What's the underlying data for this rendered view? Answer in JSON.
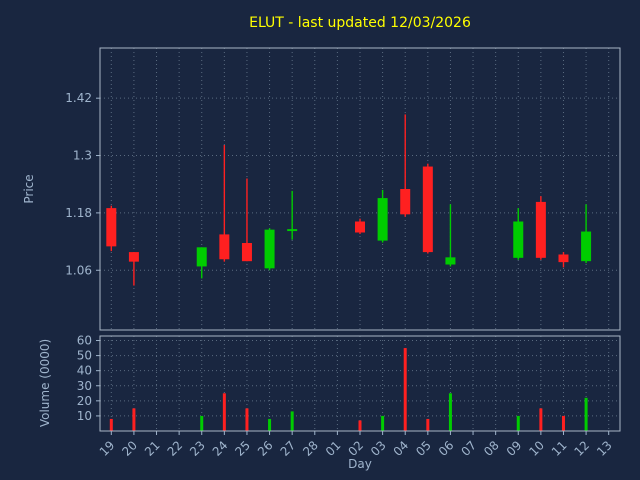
{
  "colors": {
    "background": "#192640",
    "title_color": "#ffff00",
    "axis_text": "#9fb4cc",
    "grid": "#5a6b80",
    "spine": "#a9b7c6",
    "up": "#00cc00",
    "down": "#ff2020"
  },
  "chart_data": {
    "type": "candlestick",
    "title": "ELUT - last updated 12/03/2026",
    "xlabel": "Day",
    "price_ylabel": "Price",
    "volume_ylabel": "Volume (0000)",
    "categories": [
      "19",
      "20",
      "21",
      "22",
      "23",
      "24",
      "25",
      "26",
      "27",
      "28",
      "01",
      "02",
      "03",
      "04",
      "05",
      "06",
      "07",
      "08",
      "09",
      "10",
      "11",
      "12",
      "13"
    ],
    "price_ylim": [
      0.935,
      1.525
    ],
    "volume_ylim": [
      0,
      63
    ],
    "price_ticks": [
      {
        "label": "1.06",
        "value": 1.06
      },
      {
        "label": "1.18",
        "value": 1.18
      },
      {
        "label": "1.3",
        "value": 1.3
      },
      {
        "label": "1.42",
        "value": 1.42
      }
    ],
    "volume_ticks": [
      {
        "label": "10",
        "value": 10
      },
      {
        "label": "20",
        "value": 20
      },
      {
        "label": "30",
        "value": 30
      },
      {
        "label": "40",
        "value": 40
      },
      {
        "label": "50",
        "value": 50
      },
      {
        "label": "60",
        "value": 60
      }
    ],
    "candles": [
      {
        "day": "19",
        "open": 1.19,
        "high": 1.195,
        "low": 1.1,
        "close": 1.11,
        "volume": 8
      },
      {
        "day": "20",
        "open": 1.098,
        "high": 1.098,
        "low": 1.028,
        "close": 1.078,
        "volume": 15
      },
      {
        "day": "23",
        "open": 1.068,
        "high": 1.108,
        "low": 1.043,
        "close": 1.108,
        "volume": 10
      },
      {
        "day": "24",
        "open": 1.135,
        "high": 1.322,
        "low": 1.078,
        "close": 1.083,
        "volume": 25
      },
      {
        "day": "25",
        "open": 1.117,
        "high": 1.252,
        "low": 1.079,
        "close": 1.079,
        "volume": 15
      },
      {
        "day": "26",
        "open": 1.064,
        "high": 1.148,
        "low": 1.06,
        "close": 1.145,
        "volume": 8
      },
      {
        "day": "27",
        "open": 1.142,
        "high": 1.226,
        "low": 1.124,
        "close": 1.146,
        "volume": 13
      },
      {
        "day": "02",
        "open": 1.162,
        "high": 1.168,
        "low": 1.136,
        "close": 1.139,
        "volume": 7
      },
      {
        "day": "03",
        "open": 1.122,
        "high": 1.228,
        "low": 1.118,
        "close": 1.211,
        "volume": 10
      },
      {
        "day": "04",
        "open": 1.23,
        "high": 1.386,
        "low": 1.172,
        "close": 1.177,
        "volume": 55
      },
      {
        "day": "05",
        "open": 1.277,
        "high": 1.283,
        "low": 1.095,
        "close": 1.098,
        "volume": 8
      },
      {
        "day": "06",
        "open": 1.072,
        "high": 1.198,
        "low": 1.068,
        "close": 1.087,
        "volume": 25
      },
      {
        "day": "09",
        "open": 1.086,
        "high": 1.19,
        "low": 1.082,
        "close": 1.162,
        "volume": 10
      },
      {
        "day": "10",
        "open": 1.203,
        "high": 1.215,
        "low": 1.082,
        "close": 1.086,
        "volume": 15
      },
      {
        "day": "11",
        "open": 1.093,
        "high": 1.098,
        "low": 1.066,
        "close": 1.077,
        "volume": 10
      },
      {
        "day": "12",
        "open": 1.079,
        "high": 1.198,
        "low": 1.075,
        "close": 1.141,
        "volume": 22
      }
    ]
  }
}
